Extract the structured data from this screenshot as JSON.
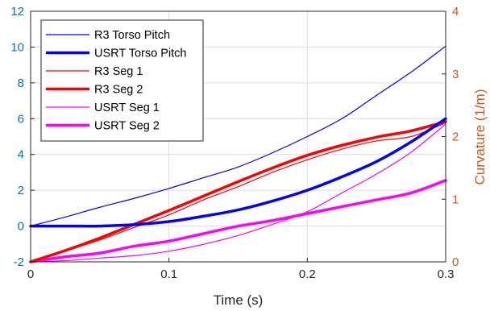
{
  "chart_data": {
    "type": "line",
    "title": "",
    "xlabel": "Time (s)",
    "ylabel_left": "",
    "ylabel_right": "Curvature (1/m)",
    "xlim": [
      0,
      0.3
    ],
    "ylim_left": [
      -2,
      12
    ],
    "ylim_right": [
      0,
      4
    ],
    "x_ticks": [
      "0",
      "0.1",
      "0.2",
      "0.3"
    ],
    "y_ticks_left": [
      "-2",
      "0",
      "2",
      "4",
      "6",
      "8",
      "10",
      "12"
    ],
    "y_ticks_right": [
      "0",
      "1",
      "2",
      "3",
      "4"
    ],
    "grid": true,
    "legend_position": "top-left",
    "colors": {
      "left_axis": "#0072BD",
      "right_axis": "#D95319",
      "blue": "#0000FF",
      "red": "#FF0000",
      "magenta": "#FF00FF"
    },
    "series": [
      {
        "name": "R3 Torso Pitch",
        "axis": "left",
        "color": "#0000FF",
        "width": 1.2,
        "x": [
          0,
          0.025,
          0.05,
          0.075,
          0.1,
          0.125,
          0.15,
          0.175,
          0.2,
          0.225,
          0.25,
          0.275,
          0.3
        ],
        "y": [
          0,
          0.5,
          1.05,
          1.55,
          2.1,
          2.7,
          3.3,
          4.1,
          5.0,
          6.0,
          7.3,
          8.6,
          10.05
        ]
      },
      {
        "name": "USRT Torso Pitch",
        "axis": "left",
        "color": "#0000FF",
        "width": 3.5,
        "x": [
          0,
          0.025,
          0.05,
          0.075,
          0.1,
          0.125,
          0.15,
          0.175,
          0.2,
          0.225,
          0.25,
          0.275,
          0.3
        ],
        "y": [
          0,
          0,
          0,
          0.08,
          0.25,
          0.55,
          0.9,
          1.4,
          2.0,
          2.75,
          3.6,
          4.7,
          6.0
        ]
      },
      {
        "name": "R3 Seg 1",
        "axis": "right",
        "color": "#FF0000",
        "width": 1.2,
        "x": [
          0,
          0.025,
          0.05,
          0.075,
          0.1,
          0.125,
          0.15,
          0.175,
          0.2,
          0.225,
          0.25,
          0.275,
          0.3
        ],
        "y": [
          0,
          0.17,
          0.35,
          0.55,
          0.75,
          0.99,
          1.2,
          1.43,
          1.63,
          1.8,
          1.93,
          2.0,
          2.22
        ]
      },
      {
        "name": "R3 Seg 2",
        "axis": "right",
        "color": "#FF0000",
        "width": 3.5,
        "x": [
          0,
          0.025,
          0.05,
          0.075,
          0.1,
          0.125,
          0.15,
          0.175,
          0.2,
          0.225,
          0.25,
          0.275,
          0.3
        ],
        "y": [
          0,
          0.18,
          0.38,
          0.6,
          0.82,
          1.05,
          1.28,
          1.5,
          1.7,
          1.86,
          1.99,
          2.09,
          2.24
        ]
      },
      {
        "name": "USRT Seg 1",
        "axis": "right",
        "color": "#FF00FF",
        "width": 1.2,
        "x": [
          0,
          0.025,
          0.05,
          0.075,
          0.1,
          0.125,
          0.15,
          0.175,
          0.2,
          0.225,
          0.25,
          0.275,
          0.3
        ],
        "y": [
          0,
          0.02,
          0.06,
          0.1,
          0.17,
          0.28,
          0.42,
          0.6,
          0.8,
          1.1,
          1.4,
          1.75,
          2.2
        ]
      },
      {
        "name": "USRT Seg 2",
        "axis": "right",
        "color": "#FF00FF",
        "width": 3.5,
        "x": [
          0,
          0.025,
          0.05,
          0.075,
          0.1,
          0.125,
          0.15,
          0.175,
          0.2,
          0.225,
          0.25,
          0.275,
          0.3
        ],
        "y": [
          0,
          0.08,
          0.14,
          0.25,
          0.33,
          0.45,
          0.57,
          0.66,
          0.77,
          0.88,
          0.99,
          1.1,
          1.3
        ]
      }
    ]
  }
}
